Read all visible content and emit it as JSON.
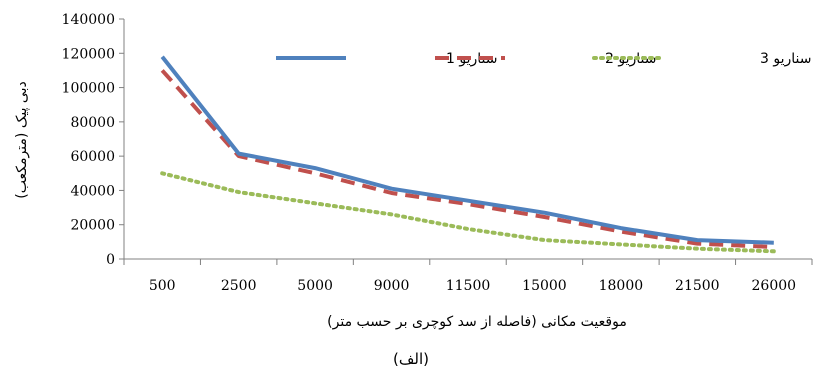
{
  "chart_data": {
    "type": "line",
    "xlabel": "موقعیت مکانی (فاصله از سد کوچری بر حسب متر)",
    "ylabel": "دبی پیک (مترمکعب)",
    "caption": "(الف)",
    "categories": [
      "500",
      "2500",
      "5000",
      "9000",
      "11500",
      "15000",
      "18000",
      "21500",
      "26000"
    ],
    "y_ticks": [
      "0",
      "20000",
      "40000",
      "60000",
      "80000",
      "100000",
      "120000",
      "140000"
    ],
    "ylim": [
      0,
      140000
    ],
    "grid": false,
    "legend_position": "top-right",
    "series": [
      {
        "name": "سناریو 1",
        "color": "#4f81bd",
        "style": "solid",
        "values": [
          118000,
          61500,
          53000,
          41000,
          34000,
          27000,
          18000,
          11000,
          9500
        ]
      },
      {
        "name": "سناریو 2",
        "color": "#c0504d",
        "style": "dashed",
        "values": [
          110000,
          60000,
          50000,
          38500,
          32000,
          24500,
          16000,
          9000,
          7000
        ]
      },
      {
        "name": "سناریو 3",
        "color": "#9bbb59",
        "style": "dotted",
        "values": [
          50000,
          39000,
          32500,
          26000,
          17500,
          11000,
          8500,
          6000,
          4500
        ]
      }
    ]
  }
}
